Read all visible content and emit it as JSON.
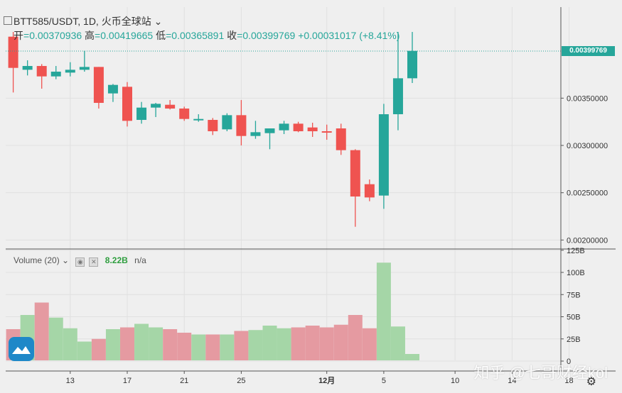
{
  "header": {
    "title": "BTT585/USDT, 1D, 火币全球站",
    "open_label": "开",
    "open": "0.00370936",
    "high_label": "高",
    "high": "0.00419665",
    "low_label": "低",
    "low": "0.00365891",
    "close_label": "收",
    "close": "0.00399769",
    "change": "+0.00031017 (+8.41%)"
  },
  "last_price_tag": "0.00399769",
  "volume_legend": {
    "label": "Volume (20)",
    "value": "8.22B",
    "na": "n/a"
  },
  "watermark": "知乎 @七哥财经kol",
  "colors": {
    "up": "#26a69a",
    "down": "#ef5350",
    "vol_up": "#a5d6a7",
    "vol_down": "#e59aa1",
    "background": "#efefef",
    "grid": "#e0e0e0"
  },
  "chart_data": [
    {
      "type": "candlestick",
      "title": "",
      "price_axis": {
        "ylim": [
          0.0019,
          0.0045
        ],
        "ticks": [
          "0.00200000",
          "0.00250000",
          "0.00300000",
          "0.00350000"
        ]
      },
      "x_ticks": [
        {
          "label": "13",
          "index": 4
        },
        {
          "label": "17",
          "index": 8
        },
        {
          "label": "21",
          "index": 12
        },
        {
          "label": "25",
          "index": 16
        },
        {
          "label": "12月",
          "index": 22
        },
        {
          "label": "5",
          "index": 26
        },
        {
          "label": "10",
          "index": 31
        },
        {
          "label": "14",
          "index": 35
        },
        {
          "label": "18",
          "index": 39
        }
      ],
      "candles": [
        {
          "o": 0.00415,
          "h": 0.0042,
          "l": 0.00356,
          "c": 0.00382
        },
        {
          "o": 0.0038,
          "h": 0.0039,
          "l": 0.00374,
          "c": 0.00384
        },
        {
          "o": 0.00384,
          "h": 0.00386,
          "l": 0.0036,
          "c": 0.00373
        },
        {
          "o": 0.00373,
          "h": 0.00384,
          "l": 0.0037,
          "c": 0.00378
        },
        {
          "o": 0.00377,
          "h": 0.00388,
          "l": 0.00373,
          "c": 0.0038
        },
        {
          "o": 0.0038,
          "h": 0.004,
          "l": 0.00378,
          "c": 0.00383
        },
        {
          "o": 0.00383,
          "h": 0.00383,
          "l": 0.00339,
          "c": 0.00345
        },
        {
          "o": 0.00355,
          "h": 0.00365,
          "l": 0.00346,
          "c": 0.00364
        },
        {
          "o": 0.00362,
          "h": 0.00367,
          "l": 0.0032,
          "c": 0.00326
        },
        {
          "o": 0.00327,
          "h": 0.00346,
          "l": 0.00323,
          "c": 0.0034
        },
        {
          "o": 0.0034,
          "h": 0.00345,
          "l": 0.0033,
          "c": 0.00344
        },
        {
          "o": 0.00343,
          "h": 0.00348,
          "l": 0.00338,
          "c": 0.00339
        },
        {
          "o": 0.00339,
          "h": 0.00341,
          "l": 0.00326,
          "c": 0.00328
        },
        {
          "o": 0.00328,
          "h": 0.00333,
          "l": 0.00325,
          "c": 0.00328
        },
        {
          "o": 0.00327,
          "h": 0.00329,
          "l": 0.00311,
          "c": 0.00315
        },
        {
          "o": 0.00317,
          "h": 0.00334,
          "l": 0.00315,
          "c": 0.00332
        },
        {
          "o": 0.00332,
          "h": 0.00348,
          "l": 0.003,
          "c": 0.0031
        },
        {
          "o": 0.0031,
          "h": 0.00326,
          "l": 0.00307,
          "c": 0.00314
        },
        {
          "o": 0.00313,
          "h": 0.00318,
          "l": 0.00296,
          "c": 0.00318
        },
        {
          "o": 0.00316,
          "h": 0.00326,
          "l": 0.00312,
          "c": 0.00323
        },
        {
          "o": 0.00323,
          "h": 0.00325,
          "l": 0.00314,
          "c": 0.00315
        },
        {
          "o": 0.00319,
          "h": 0.00324,
          "l": 0.00309,
          "c": 0.00315
        },
        {
          "o": 0.00315,
          "h": 0.00322,
          "l": 0.00306,
          "c": 0.00314
        },
        {
          "o": 0.00318,
          "h": 0.00323,
          "l": 0.0029,
          "c": 0.00295
        },
        {
          "o": 0.00295,
          "h": 0.00296,
          "l": 0.00214,
          "c": 0.00246
        },
        {
          "o": 0.00259,
          "h": 0.00264,
          "l": 0.00241,
          "c": 0.00245
        },
        {
          "o": 0.00247,
          "h": 0.00344,
          "l": 0.00233,
          "c": 0.00333
        },
        {
          "o": 0.00333,
          "h": 0.0042,
          "l": 0.00316,
          "c": 0.00371
        },
        {
          "o": 0.00371,
          "h": 0.0042,
          "l": 0.00366,
          "c": 0.004
        }
      ]
    },
    {
      "type": "bar",
      "title": "Volume",
      "ylim": [
        0,
        125
      ],
      "unit": "B",
      "ticks": [
        "0",
        "25B",
        "50B",
        "75B",
        "100B",
        "125B"
      ],
      "values": [
        36,
        52,
        66,
        49,
        37,
        22,
        25,
        36,
        38,
        42,
        38,
        36,
        32,
        30,
        30,
        30,
        34,
        35,
        40,
        37,
        38,
        40,
        38,
        41,
        52,
        37,
        111,
        39,
        8
      ],
      "directions": [
        "down",
        "up",
        "down",
        "up",
        "up",
        "up",
        "down",
        "up",
        "down",
        "up",
        "up",
        "down",
        "down",
        "up",
        "down",
        "up",
        "down",
        "up",
        "up",
        "up",
        "down",
        "down",
        "down",
        "down",
        "down",
        "down",
        "up",
        "up",
        "up"
      ]
    }
  ]
}
